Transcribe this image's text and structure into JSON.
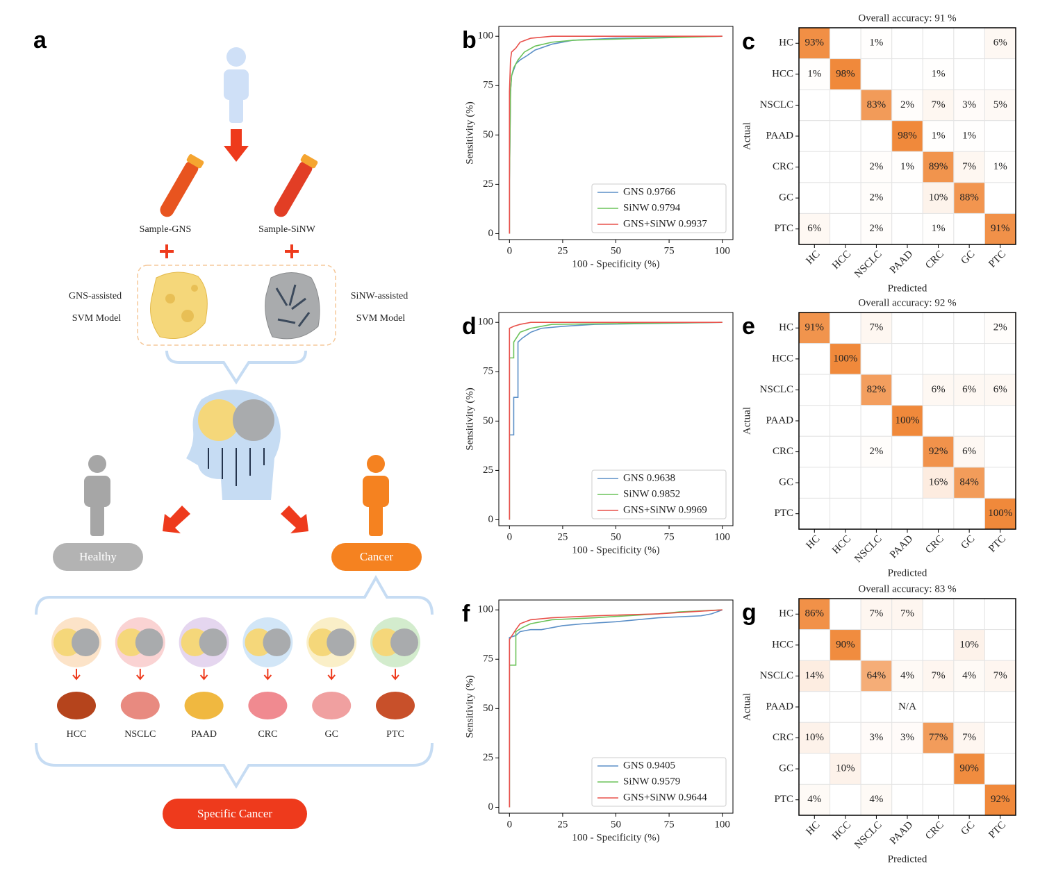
{
  "diagram": {
    "panel": "a",
    "sample_gns": "Sample-GNS",
    "sample_sinw": "Sample-SiNW",
    "gns_model": [
      "GNS-assisted",
      "SVM Model"
    ],
    "sinw_model": [
      "SiNW-assisted",
      "SVM Model"
    ],
    "healthy": "Healthy",
    "cancer": "Cancer",
    "organs": [
      "HCC",
      "NSCLC",
      "PAAD",
      "CRC",
      "GC",
      "PTC"
    ],
    "specific": "Specific Cancer"
  },
  "chart_data": [
    {
      "panel": "b",
      "type": "line",
      "xlabel": "100 - Specificity (%)",
      "ylabel": "Sensitivity (%)",
      "xlim": [
        -5,
        105
      ],
      "ylim": [
        -3,
        105
      ],
      "xticks": [
        0,
        25,
        50,
        75,
        100
      ],
      "yticks": [
        0,
        25,
        50,
        75,
        100
      ],
      "legend": "lower right",
      "series": [
        {
          "name": "GNS 0.9766",
          "color": "#5b8fc7",
          "x": [
            0,
            0,
            0.5,
            1,
            2,
            3,
            5,
            8,
            12,
            20,
            30,
            50,
            100
          ],
          "values": [
            0,
            27,
            72,
            80,
            83,
            86,
            88,
            90,
            93,
            96,
            98,
            99,
            100
          ]
        },
        {
          "name": "SiNW 0.9794",
          "color": "#6cc35a",
          "x": [
            0,
            0,
            0.5,
            1,
            2,
            4,
            7,
            12,
            20,
            30,
            100
          ],
          "values": [
            0,
            27,
            72,
            80,
            84,
            88,
            92,
            95,
            97,
            98,
            100
          ]
        },
        {
          "name": "GNS+SiNW 0.9937",
          "color": "#e8504a",
          "x": [
            0,
            0,
            0.5,
            1,
            3,
            5,
            10,
            20,
            100
          ],
          "values": [
            0,
            72,
            88,
            92,
            94,
            97,
            99,
            100,
            100
          ]
        }
      ]
    },
    {
      "panel": "c",
      "type": "heatmap",
      "title": "Overall accuracy: 91 %",
      "xlabel": "Predicted",
      "ylabel": "Actual",
      "color": "#f0893b",
      "x_categories": [
        "HC",
        "HCC",
        "NSCLC",
        "PAAD",
        "CRC",
        "GC",
        "PTC"
      ],
      "y_categories": [
        "HC",
        "HCC",
        "NSCLC",
        "PAAD",
        "CRC",
        "GC",
        "PTC"
      ],
      "values": [
        [
          93,
          null,
          1,
          null,
          null,
          null,
          6
        ],
        [
          1,
          98,
          null,
          null,
          1,
          null,
          null
        ],
        [
          null,
          null,
          83,
          2,
          7,
          3,
          5
        ],
        [
          null,
          null,
          null,
          98,
          1,
          1,
          null
        ],
        [
          null,
          null,
          2,
          1,
          89,
          7,
          1
        ],
        [
          null,
          null,
          2,
          null,
          10,
          88,
          null
        ],
        [
          6,
          null,
          2,
          null,
          1,
          null,
          91
        ]
      ],
      "value_labels": [
        [
          "93%",
          null,
          "1%",
          null,
          null,
          null,
          "6%"
        ],
        [
          "1%",
          "98%",
          null,
          null,
          "1%",
          null,
          null
        ],
        [
          null,
          null,
          "83%",
          "2%",
          "7%",
          "3%",
          "5%"
        ],
        [
          null,
          null,
          null,
          "98%",
          "1%",
          "1%",
          null
        ],
        [
          null,
          null,
          "2%",
          "1%",
          "89%",
          "7%",
          "1%"
        ],
        [
          null,
          null,
          "2%",
          null,
          "10%",
          "88%",
          null
        ],
        [
          "6%",
          null,
          "2%",
          null,
          "1%",
          null,
          "91%"
        ]
      ]
    },
    {
      "panel": "d",
      "type": "line",
      "xlabel": "100 - Specificity (%)",
      "ylabel": "Sensitivity (%)",
      "xlim": [
        -5,
        105
      ],
      "ylim": [
        -3,
        105
      ],
      "xticks": [
        0,
        25,
        50,
        75,
        100
      ],
      "yticks": [
        0,
        25,
        50,
        75,
        100
      ],
      "legend": "lower right",
      "series": [
        {
          "name": "GNS 0.9638",
          "color": "#5b8fc7",
          "x": [
            0,
            0,
            2,
            2,
            4,
            4,
            6,
            10,
            15,
            25,
            40,
            100
          ],
          "values": [
            0,
            43,
            43,
            62,
            62,
            90,
            92,
            95,
            97,
            98,
            99,
            100
          ]
        },
        {
          "name": "SiNW 0.9852",
          "color": "#6cc35a",
          "x": [
            0,
            0,
            2,
            2,
            5,
            10,
            20,
            100
          ],
          "values": [
            0,
            82,
            82,
            90,
            95,
            97,
            99,
            100
          ]
        },
        {
          "name": "GNS+SiNW 0.9969",
          "color": "#e8504a",
          "x": [
            0,
            0,
            2,
            5,
            10,
            100
          ],
          "values": [
            0,
            97,
            98,
            99,
            100,
            100
          ]
        }
      ]
    },
    {
      "panel": "e",
      "type": "heatmap",
      "title": "Overall accuracy: 92 %",
      "xlabel": "Predicted",
      "ylabel": "Actual",
      "color": "#f0893b",
      "x_categories": [
        "HC",
        "HCC",
        "NSCLC",
        "PAAD",
        "CRC",
        "GC",
        "PTC"
      ],
      "y_categories": [
        "HC",
        "HCC",
        "NSCLC",
        "PAAD",
        "CRC",
        "GC",
        "PTC"
      ],
      "values": [
        [
          91,
          null,
          7,
          null,
          null,
          null,
          2
        ],
        [
          null,
          100,
          null,
          null,
          null,
          null,
          null
        ],
        [
          null,
          null,
          82,
          null,
          6,
          6,
          6
        ],
        [
          null,
          null,
          null,
          100,
          null,
          null,
          null
        ],
        [
          null,
          null,
          2,
          null,
          92,
          6,
          null
        ],
        [
          null,
          null,
          null,
          null,
          16,
          84,
          null
        ],
        [
          null,
          null,
          null,
          null,
          null,
          null,
          100
        ]
      ],
      "value_labels": [
        [
          "91%",
          null,
          "7%",
          null,
          null,
          null,
          "2%"
        ],
        [
          null,
          "100%",
          null,
          null,
          null,
          null,
          null
        ],
        [
          null,
          null,
          "82%",
          null,
          "6%",
          "6%",
          "6%"
        ],
        [
          null,
          null,
          null,
          "100%",
          null,
          null,
          null
        ],
        [
          null,
          null,
          "2%",
          null,
          "92%",
          "6%",
          null
        ],
        [
          null,
          null,
          null,
          null,
          "16%",
          "84%",
          null
        ],
        [
          null,
          null,
          null,
          null,
          null,
          null,
          "100%"
        ]
      ]
    },
    {
      "panel": "f",
      "type": "line",
      "xlabel": "100 - Specificity (%)",
      "ylabel": "Sensitivity (%)",
      "xlim": [
        -5,
        105
      ],
      "ylim": [
        -3,
        105
      ],
      "xticks": [
        0,
        25,
        50,
        75,
        100
      ],
      "yticks": [
        0,
        25,
        50,
        75,
        100
      ],
      "legend": "lower right",
      "series": [
        {
          "name": "GNS 0.9405",
          "color": "#5b8fc7",
          "x": [
            0,
            0,
            3,
            5,
            10,
            15,
            25,
            35,
            50,
            70,
            90,
            95,
            100
          ],
          "values": [
            0,
            86,
            87,
            89,
            90,
            90,
            92,
            93,
            94,
            96,
            97,
            98,
            100
          ]
        },
        {
          "name": "SiNW 0.9579",
          "color": "#6cc35a",
          "x": [
            0,
            0,
            3,
            3,
            6,
            10,
            20,
            40,
            70,
            80,
            100
          ],
          "values": [
            0,
            72,
            72,
            89,
            91,
            93,
            95,
            96,
            98,
            99,
            100
          ]
        },
        {
          "name": "GNS+SiNW 0.9644",
          "color": "#e8504a",
          "x": [
            0,
            0,
            3,
            5,
            10,
            20,
            40,
            70,
            100
          ],
          "values": [
            0,
            85,
            90,
            93,
            95,
            96,
            97,
            98,
            100
          ]
        }
      ]
    },
    {
      "panel": "g",
      "type": "heatmap",
      "title": "Overall accuracy: 83 %",
      "xlabel": "Predicted",
      "ylabel": "Actual",
      "color": "#f0893b",
      "x_categories": [
        "HC",
        "HCC",
        "NSCLC",
        "PAAD",
        "CRC",
        "GC",
        "PTC"
      ],
      "y_categories": [
        "HC",
        "HCC",
        "NSCLC",
        "PAAD",
        "CRC",
        "GC",
        "PTC"
      ],
      "values": [
        [
          86,
          null,
          7,
          7,
          null,
          null,
          null
        ],
        [
          null,
          90,
          null,
          null,
          null,
          10,
          null
        ],
        [
          14,
          null,
          64,
          4,
          7,
          4,
          7
        ],
        [
          null,
          null,
          null,
          null,
          null,
          null,
          null
        ],
        [
          10,
          null,
          3,
          3,
          77,
          7,
          null
        ],
        [
          null,
          10,
          null,
          null,
          null,
          90,
          null
        ],
        [
          4,
          null,
          4,
          null,
          null,
          null,
          92
        ]
      ],
      "value_labels": [
        [
          "86%",
          null,
          "7%",
          "7%",
          null,
          null,
          null
        ],
        [
          null,
          "90%",
          null,
          null,
          null,
          "10%",
          null
        ],
        [
          "14%",
          null,
          "64%",
          "4%",
          "7%",
          "4%",
          "7%"
        ],
        [
          null,
          null,
          null,
          "N/A",
          null,
          null,
          null
        ],
        [
          "10%",
          null,
          "3%",
          "3%",
          "77%",
          "7%",
          null
        ],
        [
          null,
          "10%",
          null,
          null,
          null,
          "90%",
          null
        ],
        [
          "4%",
          null,
          "4%",
          null,
          null,
          null,
          "92%"
        ]
      ]
    }
  ]
}
